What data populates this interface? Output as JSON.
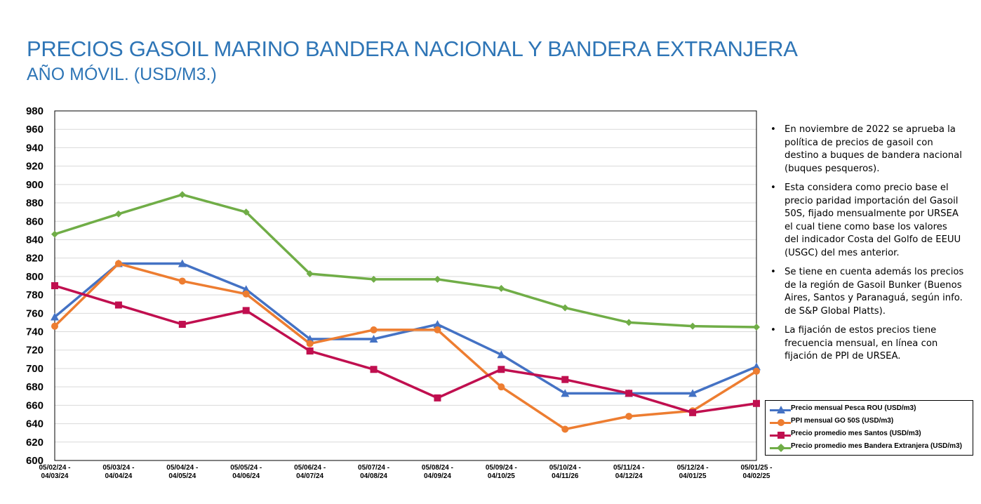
{
  "header": {
    "title": "PRECIOS GASOIL MARINO BANDERA NACIONAL Y BANDERA EXTRANJERA",
    "subtitle": "AÑO MÓVIL. (USD/M3.)"
  },
  "notes": [
    "En noviembre de 2022 se aprueba la política de precios de gasoil con destino a buques de bandera nacional (buques pesqueros).",
    "Esta considera como precio base el precio paridad importación del Gasoil 50S, fijado mensualmente por URSEA el cual tiene como base los valores del indicador Costa del Golfo de EEUU (USGC) del mes anterior.",
    "Se tiene en cuenta además los precios de la región de Gasoil Bunker (Buenos Aires, Santos y Paranaguá, según info. de S&P Global Platts).",
    "La fijación de estos precios tiene frecuencia mensual, en línea con fijación de PPI de URSEA."
  ],
  "chart_data": {
    "type": "line",
    "categories": [
      [
        "05/02/24 -",
        "04/03/24"
      ],
      [
        "05/03/24 -",
        "04/04/24"
      ],
      [
        "05/04/24 -",
        "04/05/24"
      ],
      [
        "05/05/24 -",
        "04/06/24"
      ],
      [
        "05/06/24 -",
        "04/07/24"
      ],
      [
        "05/07/24 -",
        "04/08/24"
      ],
      [
        "05/08/24 -",
        "04/09/24"
      ],
      [
        "05/09/24 -",
        "04/10/25"
      ],
      [
        "05/10/24 -",
        "04/11/26"
      ],
      [
        "05/11/24 -",
        "04/12/24"
      ],
      [
        "05/12/24 -",
        "04/01/25"
      ],
      [
        "05/01/25 -",
        "04/02/25"
      ]
    ],
    "ylim": [
      600,
      980
    ],
    "ystep": 20,
    "grid": true,
    "legend_position": "bottom-right",
    "series": [
      {
        "name": "Precio mensual Pesca ROU (USD/m3)",
        "color": "#4472C4",
        "marker": "triangle",
        "values": [
          756,
          814,
          814,
          786,
          732,
          732,
          748,
          715,
          673,
          673,
          673,
          702
        ]
      },
      {
        "name": "PPI mensual GO 50S (USD/m3)",
        "color": "#ED7D31",
        "marker": "circle",
        "values": [
          746,
          814,
          795,
          781,
          727,
          742,
          742,
          680,
          634,
          648,
          654,
          697
        ]
      },
      {
        "name": "Precio promedio mes Santos (USD/m3)",
        "color": "#C00F4F",
        "marker": "square",
        "values": [
          790,
          769,
          748,
          763,
          719,
          699,
          668,
          699,
          688,
          673,
          652,
          662
        ]
      },
      {
        "name": "Precio promedio mes Bandera Extranjera (USD/m3)",
        "color": "#70AD47",
        "marker": "diamond",
        "values": [
          846,
          868,
          889,
          870,
          803,
          797,
          797,
          787,
          766,
          750,
          746,
          745
        ]
      }
    ]
  }
}
